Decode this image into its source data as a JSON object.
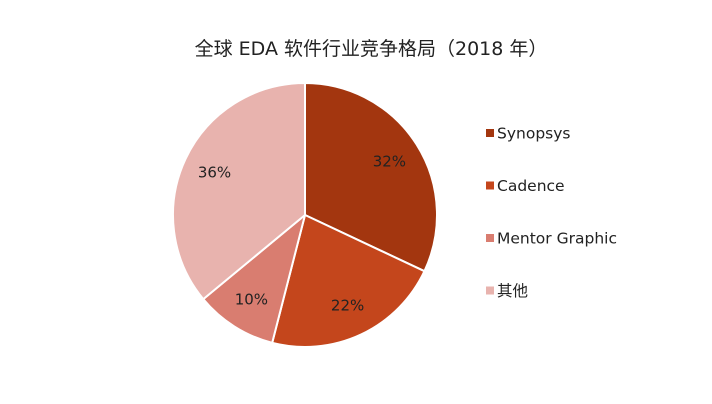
{
  "chart_data": {
    "type": "pie",
    "title": "全球 EDA 软件行业竞争格局（2018 年）",
    "slices": [
      {
        "label": "Synopsys",
        "value": 32,
        "display": "32%",
        "color": "#a3360f"
      },
      {
        "label": "Cadence",
        "value": 22,
        "display": "22%",
        "color": "#c4461c"
      },
      {
        "label": "Mentor Graphic",
        "value": 10,
        "display": "10%",
        "color": "#d97d70"
      },
      {
        "label": "其他",
        "value": 36,
        "display": "36%",
        "color": "#e8b3ae"
      }
    ],
    "legend_position": "right",
    "start": "12 o'clock",
    "direction": "clockwise"
  }
}
